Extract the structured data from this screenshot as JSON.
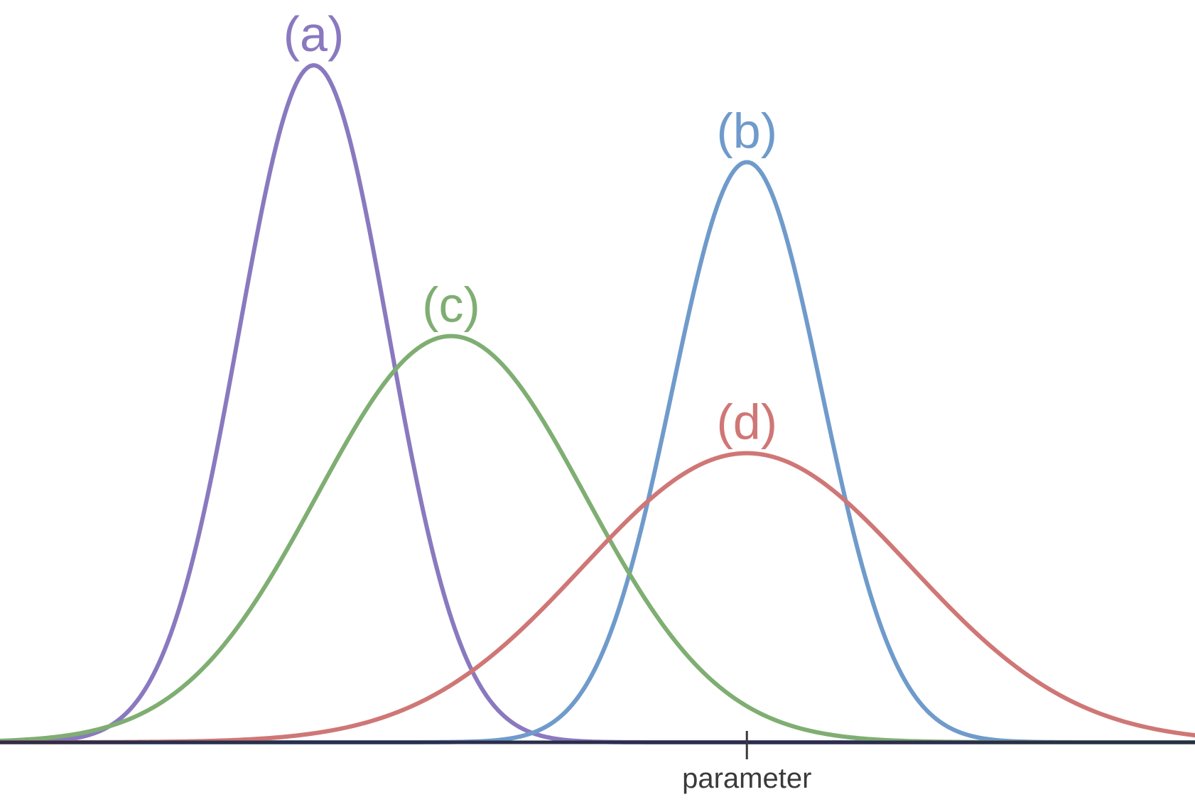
{
  "chart_data": {
    "type": "line",
    "description_of_axis": "",
    "x_axis": {
      "label": "parameter",
      "range": [
        -4.0,
        4.0
      ],
      "tick_value": 1.0
    },
    "y_axis": {
      "range": [
        0,
        1.0
      ]
    },
    "grid": false,
    "legend": "none",
    "series": [
      {
        "name": "(a)",
        "label": "(a)",
        "mean": -1.9,
        "sd": 0.5,
        "peak": 1.0,
        "color": "#8a79bf"
      },
      {
        "name": "(b)",
        "label": "(b)",
        "mean": 1.0,
        "sd": 0.5,
        "peak": 0.857,
        "color": "#6f9bcb"
      },
      {
        "name": "(c)",
        "label": "(c)",
        "mean": -0.98,
        "sd": 0.9,
        "peak": 0.6,
        "color": "#7fae72"
      },
      {
        "name": "(d)",
        "label": "(d)",
        "mean": 1.0,
        "sd": 1.1,
        "peak": 0.427,
        "color": "#cf7776"
      }
    ],
    "axis_color": "#2b2e4a",
    "tick_color": "#3a3a3a"
  }
}
